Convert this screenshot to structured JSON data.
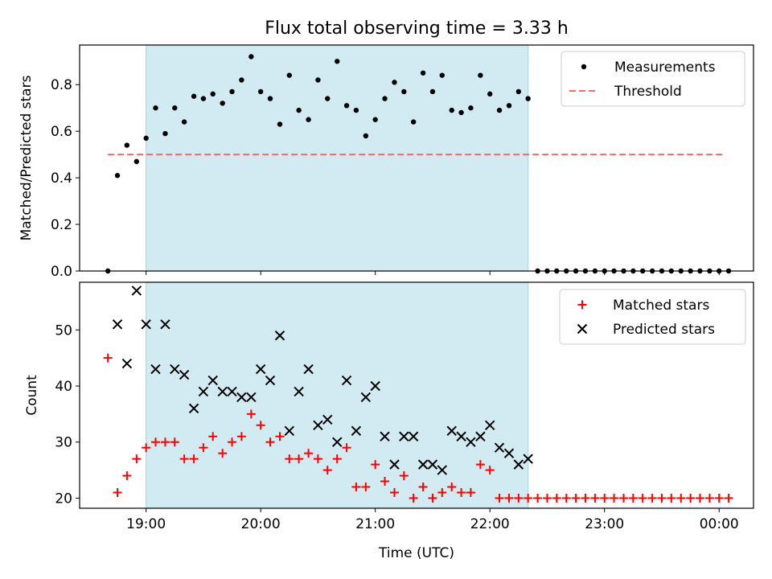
{
  "title": "Flux total observing time = 3.33 h",
  "colors": {
    "span": "#add8e6",
    "measurement": "#000000",
    "threshold": "#ff6666",
    "matched": "#ff0000",
    "predicted": "#000000"
  },
  "chart_data": [
    {
      "type": "scatter",
      "ylabel": "Matched/Predicted stars",
      "xlabel": "",
      "x_axis": "time (decimal hours, UTC; values above 24 are after midnight)",
      "xlim": [
        18.42,
        24.3
      ],
      "ylim": [
        0.0,
        0.97
      ],
      "yticks": [
        0.0,
        0.2,
        0.4,
        0.6,
        0.8
      ],
      "yticklabels": [
        "0.0",
        "0.2",
        "0.4",
        "0.6",
        "0.8"
      ],
      "highlight_span": [
        19.0,
        22.333
      ],
      "legend": {
        "location": "upper right",
        "entries": [
          "Measurements",
          "Threshold"
        ]
      },
      "series": [
        {
          "name": "Measurements",
          "marker": "dot",
          "x": [
            18.667,
            18.75,
            18.833,
            18.917,
            19.0,
            19.083,
            19.167,
            19.25,
            19.333,
            19.417,
            19.5,
            19.583,
            19.667,
            19.75,
            19.833,
            19.917,
            20.0,
            20.083,
            20.167,
            20.25,
            20.333,
            20.417,
            20.5,
            20.583,
            20.667,
            20.75,
            20.833,
            20.917,
            21.0,
            21.083,
            21.167,
            21.25,
            21.333,
            21.417,
            21.5,
            21.583,
            21.667,
            21.75,
            21.833,
            21.917,
            22.0,
            22.083,
            22.167,
            22.25,
            22.333,
            22.417,
            22.5,
            22.583,
            22.667,
            22.75,
            22.833,
            22.917,
            23.0,
            23.083,
            23.167,
            23.25,
            23.333,
            23.417,
            23.5,
            23.583,
            23.667,
            23.75,
            23.833,
            23.917,
            24.0,
            24.083
          ],
          "y": [
            0.0,
            0.41,
            0.54,
            0.47,
            0.57,
            0.7,
            0.59,
            0.7,
            0.64,
            0.75,
            0.74,
            0.76,
            0.72,
            0.77,
            0.82,
            0.92,
            0.77,
            0.74,
            0.63,
            0.84,
            0.69,
            0.65,
            0.82,
            0.74,
            0.9,
            0.71,
            0.69,
            0.58,
            0.65,
            0.74,
            0.81,
            0.77,
            0.64,
            0.85,
            0.77,
            0.84,
            0.69,
            0.68,
            0.7,
            0.84,
            0.76,
            0.69,
            0.71,
            0.77,
            0.74,
            0.0,
            0.0,
            0.0,
            0.0,
            0.0,
            0.0,
            0.0,
            0.0,
            0.0,
            0.0,
            0.0,
            0.0,
            0.0,
            0.0,
            0.0,
            0.0,
            0.0,
            0.0,
            0.0,
            0.0,
            0.0
          ]
        },
        {
          "name": "Threshold",
          "style": "dashed",
          "x": [
            18.667,
            24.05
          ],
          "y": [
            0.5,
            0.5
          ]
        }
      ]
    },
    {
      "type": "scatter",
      "ylabel": "Count",
      "xlabel": "Time (UTC)",
      "x_axis": "time (decimal hours, UTC; values above 24 are after midnight)",
      "xlim": [
        18.42,
        24.3
      ],
      "ylim": [
        18.2,
        58.5
      ],
      "yticks": [
        20,
        30,
        40,
        50
      ],
      "yticklabels": [
        "20",
        "30",
        "40",
        "50"
      ],
      "xticks": [
        19,
        20,
        21,
        22,
        23,
        24
      ],
      "xticklabels": [
        "19:00",
        "20:00",
        "21:00",
        "22:00",
        "23:00",
        "00:00"
      ],
      "highlight_span": [
        19.0,
        22.333
      ],
      "legend": {
        "location": "upper right",
        "entries": [
          "Matched stars",
          "Predicted stars"
        ]
      },
      "series": [
        {
          "name": "Matched stars",
          "marker": "plus",
          "x": [
            18.667,
            18.75,
            18.833,
            18.917,
            19.0,
            19.083,
            19.167,
            19.25,
            19.333,
            19.417,
            19.5,
            19.583,
            19.667,
            19.75,
            19.833,
            19.917,
            20.0,
            20.083,
            20.167,
            20.25,
            20.333,
            20.417,
            20.5,
            20.583,
            20.667,
            20.75,
            20.833,
            20.917,
            21.0,
            21.083,
            21.167,
            21.25,
            21.333,
            21.417,
            21.5,
            21.583,
            21.667,
            21.75,
            21.833,
            21.917,
            22.0,
            22.083,
            22.167,
            22.25,
            22.333,
            22.417,
            22.5,
            22.583,
            22.667,
            22.75,
            22.833,
            22.917,
            23.0,
            23.083,
            23.167,
            23.25,
            23.333,
            23.417,
            23.5,
            23.583,
            23.667,
            23.75,
            23.833,
            23.917,
            24.0,
            24.083
          ],
          "y": [
            45,
            21,
            24,
            27,
            29,
            30,
            30,
            30,
            27,
            27,
            29,
            31,
            28,
            30,
            31,
            35,
            33,
            30,
            31,
            27,
            27,
            28,
            27,
            25,
            27,
            29,
            22,
            22,
            26,
            23,
            21,
            24,
            20,
            22,
            20,
            21,
            22,
            21,
            21,
            26,
            25,
            20,
            20,
            20,
            20,
            20,
            20,
            20,
            20,
            20,
            20,
            20,
            20,
            20,
            20,
            20,
            20,
            20,
            20,
            20,
            20,
            20,
            20,
            20,
            20,
            20
          ]
        },
        {
          "name": "Predicted stars",
          "marker": "x",
          "x": [
            18.75,
            18.833,
            18.917,
            19.0,
            19.083,
            19.167,
            19.25,
            19.333,
            19.417,
            19.5,
            19.583,
            19.667,
            19.75,
            19.833,
            19.917,
            20.0,
            20.083,
            20.167,
            20.25,
            20.333,
            20.417,
            20.5,
            20.583,
            20.667,
            20.75,
            20.833,
            20.917,
            21.0,
            21.083,
            21.167,
            21.25,
            21.333,
            21.417,
            21.5,
            21.583,
            21.667,
            21.75,
            21.833,
            21.917,
            22.0,
            22.083,
            22.167,
            22.25,
            22.333
          ],
          "y": [
            51,
            44,
            57,
            51,
            43,
            51,
            43,
            42,
            36,
            39,
            41,
            39,
            39,
            38,
            38,
            43,
            41,
            49,
            32,
            39,
            43,
            33,
            34,
            30,
            41,
            32,
            38,
            40,
            31,
            26,
            31,
            31,
            26,
            26,
            25,
            32,
            31,
            30,
            31,
            33,
            29,
            28,
            26,
            27
          ]
        }
      ]
    }
  ]
}
